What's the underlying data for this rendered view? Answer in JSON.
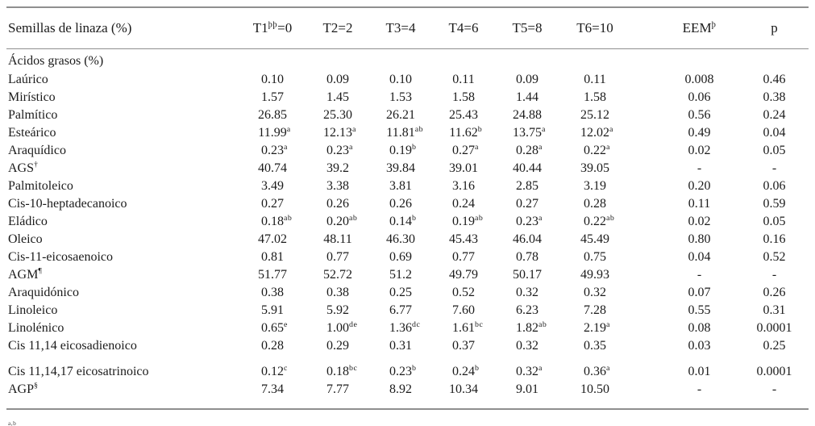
{
  "colors": {
    "background": "#ffffff",
    "text": "#1b1b1b",
    "rule": "#8f8f8f"
  },
  "table": {
    "corner_label": "Semillas de linaza (%)",
    "columns": [
      {
        "name": "t1",
        "base": "T1",
        "sup": "þþ",
        "rest": "=0"
      },
      {
        "name": "t2",
        "base": "T2",
        "sup": "",
        "rest": "=2"
      },
      {
        "name": "t3",
        "base": "T3",
        "sup": "",
        "rest": "=4"
      },
      {
        "name": "t4",
        "base": "T4",
        "sup": "",
        "rest": "=6"
      },
      {
        "name": "t5",
        "base": "T5",
        "sup": "",
        "rest": "=8"
      },
      {
        "name": "t6",
        "base": "T6",
        "sup": "",
        "rest": "=10"
      },
      {
        "name": "eem",
        "base": "EEM",
        "sup": "þ",
        "rest": ""
      },
      {
        "name": "p",
        "base": "p",
        "sup": "",
        "rest": ""
      }
    ],
    "section_label": "Ácidos grasos (%)",
    "rows": [
      {
        "label": "Laúrico",
        "label_sup": "",
        "cells": [
          {
            "v": "0.10"
          },
          {
            "v": "0.09"
          },
          {
            "v": "0.10"
          },
          {
            "v": "0.11"
          },
          {
            "v": "0.09"
          },
          {
            "v": "0.11"
          },
          {
            "v": "0.008"
          },
          {
            "v": "0.46"
          }
        ]
      },
      {
        "label": "Mirístico",
        "label_sup": "",
        "cells": [
          {
            "v": "1.57"
          },
          {
            "v": "1.45"
          },
          {
            "v": "1.53"
          },
          {
            "v": "1.58"
          },
          {
            "v": "1.44"
          },
          {
            "v": "1.58"
          },
          {
            "v": "0.06"
          },
          {
            "v": "0.38"
          }
        ]
      },
      {
        "label": "Palmítico",
        "label_sup": "",
        "cells": [
          {
            "v": "26.85"
          },
          {
            "v": "25.30"
          },
          {
            "v": "26.21"
          },
          {
            "v": "25.43"
          },
          {
            "v": "24.88"
          },
          {
            "v": "25.12"
          },
          {
            "v": "0.56"
          },
          {
            "v": "0.24"
          }
        ]
      },
      {
        "label": "Esteárico",
        "label_sup": "",
        "cells": [
          {
            "v": "11.99",
            "s": "a"
          },
          {
            "v": "12.13",
            "s": "a"
          },
          {
            "v": "11.81",
            "s": "ab"
          },
          {
            "v": "11.62",
            "s": "b"
          },
          {
            "v": "13.75",
            "s": "a"
          },
          {
            "v": "12.02",
            "s": "a"
          },
          {
            "v": "0.49"
          },
          {
            "v": "0.04"
          }
        ]
      },
      {
        "label": "Araquídico",
        "label_sup": "",
        "cells": [
          {
            "v": "0.23",
            "s": "a"
          },
          {
            "v": "0.23",
            "s": "a"
          },
          {
            "v": "0.19",
            "s": "b"
          },
          {
            "v": "0.27",
            "s": "a"
          },
          {
            "v": "0.28",
            "s": "a"
          },
          {
            "v": "0.22",
            "s": "a"
          },
          {
            "v": "0.02"
          },
          {
            "v": "0.05"
          }
        ]
      },
      {
        "label": "AGS",
        "label_sup": "†",
        "cells": [
          {
            "v": "40.74"
          },
          {
            "v": "39.2"
          },
          {
            "v": "39.84"
          },
          {
            "v": "39.01"
          },
          {
            "v": "40.44"
          },
          {
            "v": "39.05"
          },
          {
            "v": "-"
          },
          {
            "v": "-"
          }
        ]
      },
      {
        "label": "Palmitoleico",
        "label_sup": "",
        "cells": [
          {
            "v": "3.49"
          },
          {
            "v": "3.38"
          },
          {
            "v": "3.81"
          },
          {
            "v": "3.16"
          },
          {
            "v": "2.85"
          },
          {
            "v": "3.19"
          },
          {
            "v": "0.20"
          },
          {
            "v": "0.06"
          }
        ]
      },
      {
        "label": "Cis-10-heptadecanoico",
        "label_sup": "",
        "cells": [
          {
            "v": "0.27"
          },
          {
            "v": "0.26"
          },
          {
            "v": "0.26"
          },
          {
            "v": "0.24"
          },
          {
            "v": "0.27"
          },
          {
            "v": "0.28"
          },
          {
            "v": "0.11"
          },
          {
            "v": "0.59"
          }
        ]
      },
      {
        "label": "Eládico",
        "label_sup": "",
        "cells": [
          {
            "v": "0.18",
            "s": "ab"
          },
          {
            "v": "0.20",
            "s": "ab"
          },
          {
            "v": "0.14",
            "s": "b"
          },
          {
            "v": "0.19",
            "s": "ab"
          },
          {
            "v": "0.23",
            "s": "a"
          },
          {
            "v": "0.22",
            "s": "ab"
          },
          {
            "v": "0.02"
          },
          {
            "v": "0.05"
          }
        ]
      },
      {
        "label": "Oleico",
        "label_sup": "",
        "cells": [
          {
            "v": "47.02"
          },
          {
            "v": "48.11"
          },
          {
            "v": "46.30"
          },
          {
            "v": "45.43"
          },
          {
            "v": "46.04"
          },
          {
            "v": "45.49"
          },
          {
            "v": "0.80"
          },
          {
            "v": "0.16"
          }
        ]
      },
      {
        "label": "Cis-11-eicosaenoico",
        "label_sup": "",
        "cells": [
          {
            "v": "0.81"
          },
          {
            "v": "0.77"
          },
          {
            "v": "0.69"
          },
          {
            "v": "0.77"
          },
          {
            "v": "0.78"
          },
          {
            "v": "0.75"
          },
          {
            "v": "0.04"
          },
          {
            "v": "0.52"
          }
        ]
      },
      {
        "label": "AGM",
        "label_sup": "¶",
        "cells": [
          {
            "v": "51.77"
          },
          {
            "v": "52.72"
          },
          {
            "v": "51.2"
          },
          {
            "v": "49.79"
          },
          {
            "v": "50.17"
          },
          {
            "v": "49.93"
          },
          {
            "v": "-"
          },
          {
            "v": "-"
          }
        ]
      },
      {
        "label": "Araquidónico",
        "label_sup": "",
        "cells": [
          {
            "v": "0.38"
          },
          {
            "v": "0.38"
          },
          {
            "v": "0.25"
          },
          {
            "v": "0.52"
          },
          {
            "v": "0.32"
          },
          {
            "v": "0.32"
          },
          {
            "v": "0.07"
          },
          {
            "v": "0.26"
          }
        ]
      },
      {
        "label": "Linoleico",
        "label_sup": "",
        "cells": [
          {
            "v": "5.91"
          },
          {
            "v": "5.92"
          },
          {
            "v": "6.77"
          },
          {
            "v": "7.60"
          },
          {
            "v": "6.23"
          },
          {
            "v": "7.28"
          },
          {
            "v": "0.55"
          },
          {
            "v": "0.31"
          }
        ]
      },
      {
        "label": "Linolénico",
        "label_sup": "",
        "cells": [
          {
            "v": "0.65",
            "s": "e"
          },
          {
            "v": "1.00",
            "s": "de"
          },
          {
            "v": "1.36",
            "s": "dc"
          },
          {
            "v": "1.61",
            "s": "bc"
          },
          {
            "v": "1.82",
            "s": "ab"
          },
          {
            "v": "2.19",
            "s": "a"
          },
          {
            "v": "0.08"
          },
          {
            "v": "0.0001"
          }
        ]
      },
      {
        "label": "Cis 11,14 eicosadienoico",
        "label_sup": "",
        "cells": [
          {
            "v": "0.28"
          },
          {
            "v": "0.29"
          },
          {
            "v": "0.31"
          },
          {
            "v": "0.37"
          },
          {
            "v": "0.32"
          },
          {
            "v": "0.35"
          },
          {
            "v": "0.03"
          },
          {
            "v": "0.25"
          }
        ]
      },
      {
        "label": "Cis 11,14,17 eicosatrinoico",
        "label_sup": "",
        "cells": [
          {
            "v": "0.12",
            "s": "c"
          },
          {
            "v": "0.18",
            "s": "bc"
          },
          {
            "v": "0.23",
            "s": "b"
          },
          {
            "v": "0.24",
            "s": "b"
          },
          {
            "v": "0.32",
            "s": "a"
          },
          {
            "v": "0.36",
            "s": "a"
          },
          {
            "v": "0.01"
          },
          {
            "v": "0.0001"
          }
        ]
      },
      {
        "label": "AGP",
        "label_sup": "§",
        "cells": [
          {
            "v": "7.34"
          },
          {
            "v": "7.77"
          },
          {
            "v": "8.92"
          },
          {
            "v": "10.34"
          },
          {
            "v": "9.01"
          },
          {
            "v": "10.50"
          },
          {
            "v": "-"
          },
          {
            "v": "-"
          }
        ]
      }
    ],
    "footnote_fragment": "a,b"
  }
}
